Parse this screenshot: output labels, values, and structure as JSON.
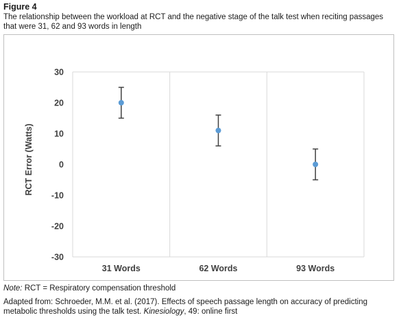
{
  "figure": {
    "label": "Figure 4",
    "caption": "The relationship between the workload at RCT and the negative stage of the talk test when reciting passages that were 31, 62 and 93 words in length"
  },
  "chart_data": {
    "type": "scatter",
    "categories": [
      "31 Words",
      "62 Words",
      "93 Words"
    ],
    "values": [
      20,
      11,
      0
    ],
    "error": [
      5,
      5,
      5
    ],
    "ylabel": "RCT Error (Watts)",
    "xlabel": "",
    "ylim": [
      -30,
      30
    ],
    "yticks": [
      30,
      20,
      10,
      0,
      -10,
      -20,
      -30
    ],
    "grid": "vertical",
    "marker_color": "#5b9bd5",
    "errorbar_color": "#404040",
    "gridline_color": "#d9d9d9"
  },
  "note": {
    "prefix": "Note:",
    "text": " RCT = Respiratory compensation threshold"
  },
  "source": {
    "text1": "Adapted from: Schroeder, M.M. et al. (2017). Effects of speech passage length on accuracy of predicting metabolic thresholds using the talk test. ",
    "journal": "Kinesiology",
    "text2": ", 49: online first"
  }
}
